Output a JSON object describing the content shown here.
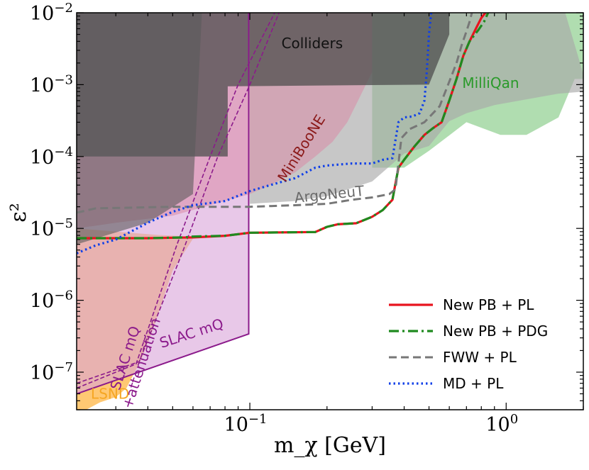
{
  "chart_data": {
    "type": "line",
    "xscale": "log",
    "yscale": "log",
    "xlim": [
      0.0211,
      2.0
    ],
    "ylim": [
      3e-08,
      0.01
    ],
    "xlabel": "m_χ [GeV]",
    "ylabel": "ε²",
    "x_ticks": [
      {
        "value": 0.1,
        "base": "10",
        "exp": "−1"
      },
      {
        "value": 1.0,
        "base": "10",
        "exp": "0"
      }
    ],
    "y_ticks": [
      {
        "value": 1e-07,
        "base": "10",
        "exp": "−7"
      },
      {
        "value": 1e-06,
        "base": "10",
        "exp": "−6"
      },
      {
        "value": 1e-05,
        "base": "10",
        "exp": "−5"
      },
      {
        "value": 0.0001,
        "base": "10",
        "exp": "−4"
      },
      {
        "value": 0.001,
        "base": "10",
        "exp": "−3"
      },
      {
        "value": 0.01,
        "base": "10",
        "exp": "−2"
      }
    ],
    "regions": [
      {
        "name": "milliqan-region",
        "label": "MilliQan",
        "color": "#8ecf8e",
        "opacity": 0.7,
        "label_color": "#2a9a2a",
        "label_at": [
          0.87,
          0.0009
        ],
        "points": [
          [
            0.3,
            0.01
          ],
          [
            2.0,
            0.01
          ],
          [
            2.0,
            0.0012
          ],
          [
            1.85,
            0.0012
          ],
          [
            1.6,
            0.00035
          ],
          [
            1.2,
            0.0002
          ],
          [
            0.95,
            0.0002
          ],
          [
            0.7,
            0.0003
          ],
          [
            0.5,
            0.00012
          ],
          [
            0.4,
            7e-05
          ],
          [
            0.3,
            7e-05
          ]
        ]
      },
      {
        "name": "argoneut-region",
        "label": "ArgoNeuT",
        "color": "#a9a9a9",
        "opacity": 0.65,
        "label_color": "#6a6a6a",
        "label_at": [
          0.205,
          2.55e-05
        ],
        "label_rotation": -6,
        "points": [
          [
            0.1,
            0.01
          ],
          [
            1.7,
            0.01
          ],
          [
            2.0,
            0.0014
          ],
          [
            2.0,
            0.0008
          ],
          [
            1.6,
            0.00075
          ],
          [
            0.9,
            0.00052
          ],
          [
            0.7,
            0.0004
          ],
          [
            0.6,
            0.00031
          ],
          [
            0.5,
            0.00014
          ],
          [
            0.4,
            0.00011
          ],
          [
            0.3,
            4.5e-05
          ],
          [
            0.2,
            2.8e-05
          ],
          [
            0.15,
            2.4e-05
          ],
          [
            0.1,
            2.2e-05
          ]
        ]
      },
      {
        "name": "lsnd-region",
        "label": "LSND",
        "color": "#ffbe5a",
        "opacity": 0.85,
        "label_color": "#f5a623",
        "label_at": [
          0.0285,
          4.25e-08
        ],
        "points": [
          [
            0.0211,
            1e-05
          ],
          [
            0.044,
            8.1e-06
          ],
          [
            0.055,
            7.8e-06
          ],
          [
            0.06,
            7.2e-06
          ],
          [
            0.05,
            2.6e-06
          ],
          [
            0.042,
            4e-07
          ],
          [
            0.038,
            1.6e-07
          ],
          [
            0.033,
            6e-08
          ],
          [
            0.03,
            4.5e-08
          ],
          [
            0.026,
            3.8e-08
          ],
          [
            0.023,
            3e-08
          ],
          [
            0.0211,
            3e-08
          ]
        ]
      },
      {
        "name": "slacmq-region",
        "label": "SLAC mQ",
        "color": "#d8a4d8",
        "opacity": 0.6,
        "label_color": "#8b1a8b",
        "label_at": [
          0.06,
          3e-07
        ],
        "label_rotation": -18,
        "points": [
          [
            0.0211,
            5e-08
          ],
          [
            0.099,
            3.4e-07
          ],
          [
            0.099,
            0.01
          ],
          [
            0.0211,
            0.01
          ]
        ]
      },
      {
        "name": "miniboone-region",
        "label": "MiniBooNE",
        "color": "#d88aa5",
        "opacity": 0.55,
        "label_color": "#8b1a1a",
        "label_at": [
          0.165,
          0.00012
        ],
        "label_rotation": -58,
        "points": [
          [
            0.0211,
            1e-05
          ],
          [
            0.03,
            1.2e-05
          ],
          [
            0.05,
            1.5e-05
          ],
          [
            0.1,
            3e-05
          ],
          [
            0.12,
            4e-05
          ],
          [
            0.15,
            6e-05
          ],
          [
            0.18,
            0.0001
          ],
          [
            0.21,
            0.00016
          ],
          [
            0.24,
            0.0003
          ],
          [
            0.27,
            0.0007
          ],
          [
            0.3,
            0.0015
          ],
          [
            0.3,
            0.01
          ],
          [
            0.0211,
            0.01
          ]
        ]
      },
      {
        "name": "colliders-region",
        "label": "Colliders",
        "color": "#4e4e4e",
        "opacity": 0.75,
        "label_color": "#111111",
        "label_at": [
          0.175,
          0.0032
        ],
        "points": [
          [
            0.0211,
            0.0001
          ],
          [
            0.082,
            0.0001
          ],
          [
            0.082,
            0.00095
          ],
          [
            0.5,
            0.001
          ],
          [
            0.6,
            0.005
          ],
          [
            0.6,
            0.01
          ],
          [
            0.0211,
            0.01
          ]
        ]
      },
      {
        "name": "darkgray-region",
        "color": "#5a5a5a",
        "opacity": 0.6,
        "points": [
          [
            0.0211,
            6e-06
          ],
          [
            0.04,
            1.2e-05
          ],
          [
            0.06,
            3e-05
          ],
          [
            0.065,
            0.01
          ],
          [
            0.0211,
            0.01
          ]
        ]
      }
    ],
    "slac_attenuation": {
      "label": "SLAC mQ\n+attenuation",
      "label_color": "#8b1a8b",
      "label_at": [
        0.034,
        1.5e-07
      ],
      "label_rotation": -72,
      "boundary_a": [
        [
          0.0211,
          6e-08
        ],
        [
          0.036,
          1.3e-07
        ],
        [
          0.052,
          6e-06
        ],
        [
          0.07,
          0.0001
        ],
        [
          0.09,
          0.001
        ],
        [
          0.125,
          0.01
        ]
      ],
      "boundary_b": [
        [
          0.0211,
          7e-08
        ],
        [
          0.037,
          1.4e-07
        ],
        [
          0.055,
          5e-06
        ],
        [
          0.075,
          0.0001
        ],
        [
          0.1,
          0.001
        ],
        [
          0.13,
          0.01
        ]
      ]
    },
    "series": [
      {
        "name": "New PB + PL",
        "color": "#e8141e",
        "dash": "",
        "width": 3.2,
        "x": [
          0.0211,
          0.04,
          0.06,
          0.08,
          0.1,
          0.18,
          0.2,
          0.22,
          0.26,
          0.3,
          0.33,
          0.36,
          0.38,
          0.4,
          0.44,
          0.48,
          0.52,
          0.56,
          0.6,
          0.64,
          0.68,
          0.72,
          0.77,
          0.8,
          0.83
        ],
        "y": [
          7.3e-06,
          7.3e-06,
          7.5e-06,
          7.9e-06,
          8.7e-06,
          8.9e-06,
          1.05e-05,
          1.14e-05,
          1.18e-05,
          1.45e-05,
          1.8e-05,
          2.5e-05,
          7e-05,
          9e-05,
          0.00014,
          0.0002,
          0.00025,
          0.0003,
          0.0006,
          0.0012,
          0.0025,
          0.004,
          0.0065,
          0.0085,
          0.01
        ]
      },
      {
        "name": "New PB + PDG",
        "color": "#1f8a1f",
        "dash": "14 5 3 5",
        "width": 3.2,
        "x": [
          0.0211,
          0.04,
          0.055,
          0.06,
          0.08,
          0.1,
          0.18,
          0.2,
          0.22,
          0.26,
          0.3,
          0.33,
          0.36,
          0.38,
          0.4,
          0.44,
          0.48,
          0.52,
          0.56,
          0.6,
          0.64,
          0.68,
          0.72,
          0.78,
          0.82,
          0.85
        ],
        "y": [
          7.3e-06,
          7.3e-06,
          7.5e-06,
          7.7e-06,
          7.9e-06,
          8.7e-06,
          8.9e-06,
          1.05e-05,
          1.14e-05,
          1.18e-05,
          1.45e-05,
          1.8e-05,
          2.5e-05,
          7e-05,
          9e-05,
          0.00014,
          0.0002,
          0.00025,
          0.0003,
          0.0006,
          0.0012,
          0.0025,
          0.004,
          0.0058,
          0.0075,
          0.01
        ]
      },
      {
        "name": "FWW + PL",
        "color": "#777777",
        "dash": "11 6",
        "width": 3.0,
        "x": [
          0.0211,
          0.025,
          0.05,
          0.1,
          0.15,
          0.2,
          0.25,
          0.3,
          0.35,
          0.37,
          0.39,
          0.42,
          0.48,
          0.55,
          0.6,
          0.64,
          0.67,
          0.7,
          0.72,
          0.735
        ],
        "y": [
          1.65e-05,
          1.9e-05,
          2e-05,
          2e-05,
          2.1e-05,
          2.2e-05,
          2.5e-05,
          2.7e-05,
          3e-05,
          3.5e-05,
          0.00018,
          0.00024,
          0.0003,
          0.0005,
          0.0011,
          0.002,
          0.0035,
          0.0055,
          0.0075,
          0.01
        ]
      },
      {
        "name": "MD + PL",
        "color": "#1040e8",
        "dash": "2.5 4",
        "width": 3.2,
        "x": [
          0.0211,
          0.025,
          0.03,
          0.04,
          0.05,
          0.06,
          0.08,
          0.1,
          0.12,
          0.15,
          0.18,
          0.2,
          0.25,
          0.3,
          0.33,
          0.36,
          0.38,
          0.4,
          0.43,
          0.46,
          0.48,
          0.49,
          0.5,
          0.51
        ],
        "y": [
          4.5e-06,
          5.8e-06,
          7e-06,
          1.2e-05,
          1.7e-05,
          2.1e-05,
          2.4e-05,
          3.3e-05,
          4e-05,
          5e-05,
          7e-05,
          7.5e-05,
          8e-05,
          8e-05,
          9e-05,
          9.5e-05,
          0.0003,
          0.00035,
          0.00036,
          0.0004,
          0.0006,
          0.0015,
          0.005,
          0.01
        ]
      }
    ],
    "legend": {
      "placement": "lower-right",
      "entries": [
        "New PB + PL",
        "New PB + PDG",
        "FWW + PL",
        "MD + PL"
      ]
    }
  }
}
